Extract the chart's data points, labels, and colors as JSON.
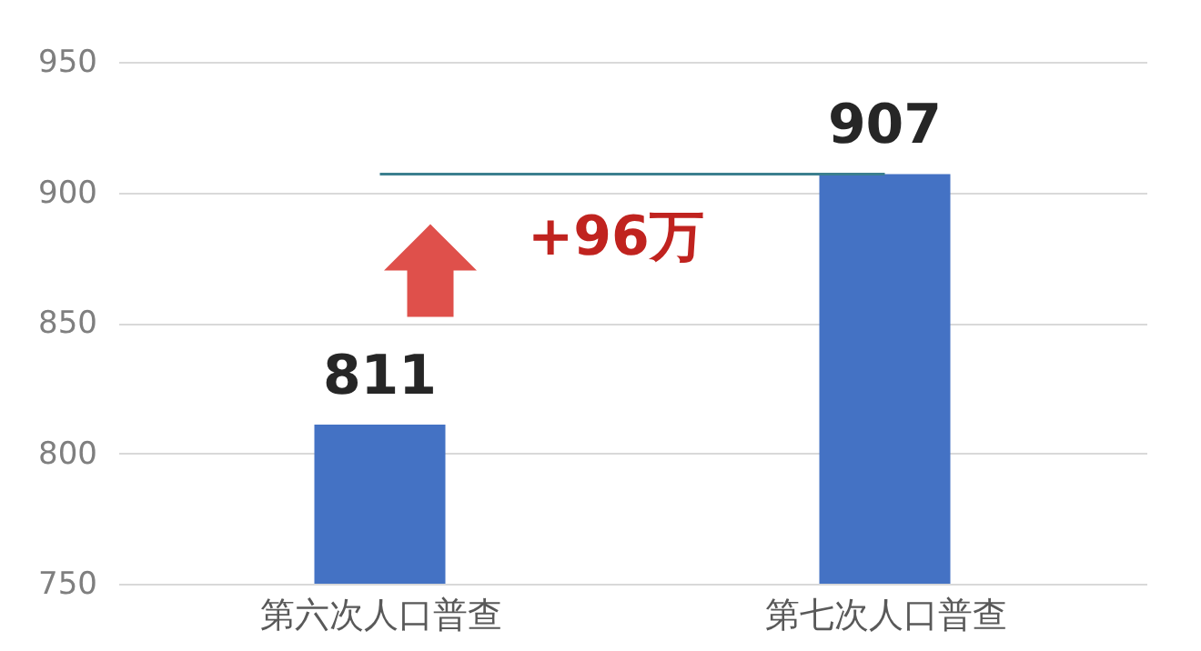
{
  "chart_data": {
    "type": "bar",
    "categories": [
      "第六次人口普查",
      "第七次人口普查"
    ],
    "values": [
      811,
      907
    ],
    "color": "#4472c4",
    "data_labels": true,
    "ylim": [
      750,
      950
    ],
    "yticks": [
      750,
      800,
      850,
      900,
      950
    ],
    "grid": "y",
    "ref_lines": [
      {
        "axis": "y",
        "value": 907,
        "color": "#3b7f8f"
      }
    ],
    "annotations": [
      "+96万"
    ]
  }
}
